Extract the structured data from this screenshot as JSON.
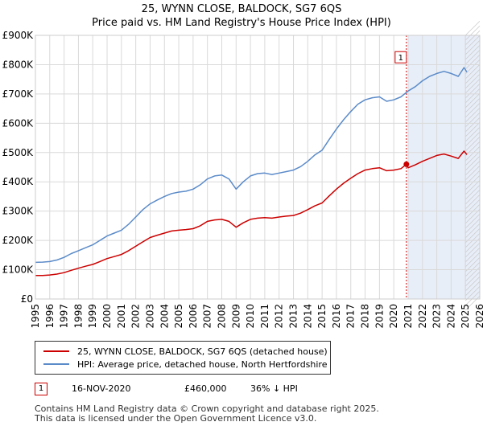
{
  "header": {
    "title": "25, WYNN CLOSE, BALDOCK, SG7 6QS",
    "subtitle": "Price paid vs. HM Land Registry's House Price Index (HPI)"
  },
  "chart_data": {
    "type": "line",
    "title": "25, WYNN CLOSE, BALDOCK, SG7 6QS",
    "subtitle": "Price paid vs. HM Land Registry's House Price Index (HPI)",
    "xlabel": "",
    "ylabel": "",
    "xlim": [
      1995,
      2026
    ],
    "ylim": [
      0,
      900000
    ],
    "x_ticks": [
      1995,
      1996,
      1997,
      1998,
      1999,
      2000,
      2001,
      2002,
      2003,
      2004,
      2005,
      2006,
      2007,
      2008,
      2009,
      2010,
      2011,
      2012,
      2013,
      2014,
      2015,
      2016,
      2017,
      2018,
      2019,
      2020,
      2021,
      2022,
      2023,
      2024,
      2025,
      2026
    ],
    "y_ticks": [
      {
        "value": 0,
        "label": "£0"
      },
      {
        "value": 100000,
        "label": "£100K"
      },
      {
        "value": 200000,
        "label": "£200K"
      },
      {
        "value": 300000,
        "label": "£300K"
      },
      {
        "value": 400000,
        "label": "£400K"
      },
      {
        "value": 500000,
        "label": "£500K"
      },
      {
        "value": 600000,
        "label": "£600K"
      },
      {
        "value": 700000,
        "label": "£700K"
      },
      {
        "value": 800000,
        "label": "£800K"
      },
      {
        "value": 900000,
        "label": "£900K"
      }
    ],
    "grid": true,
    "series": [
      {
        "name": "25, WYNN CLOSE, BALDOCK, SG7 6QS (detached house)",
        "color": "#cc0000",
        "x": [
          1995.0,
          1995.5,
          1996.0,
          1996.5,
          1997.0,
          1997.5,
          1998.0,
          1998.5,
          1999.0,
          1999.5,
          2000.0,
          2000.5,
          2001.0,
          2001.5,
          2002.0,
          2002.5,
          2003.0,
          2003.5,
          2004.0,
          2004.5,
          2005.0,
          2005.5,
          2006.0,
          2006.5,
          2007.0,
          2007.5,
          2008.0,
          2008.5,
          2009.0,
          2009.5,
          2010.0,
          2010.5,
          2011.0,
          2011.5,
          2012.0,
          2012.5,
          2013.0,
          2013.5,
          2014.0,
          2014.5,
          2015.0,
          2015.5,
          2016.0,
          2016.5,
          2017.0,
          2017.5,
          2018.0,
          2018.5,
          2019.0,
          2019.5,
          2020.0,
          2020.5,
          2020.88,
          2021.0,
          2021.5,
          2022.0,
          2022.5,
          2023.0,
          2023.5,
          2024.0,
          2024.5,
          2024.9,
          2025.1
        ],
        "values": [
          80000,
          80000,
          82000,
          85000,
          90000,
          98000,
          105000,
          112000,
          118000,
          128000,
          138000,
          145000,
          152000,
          165000,
          180000,
          195000,
          210000,
          218000,
          225000,
          232000,
          235000,
          237000,
          240000,
          250000,
          265000,
          270000,
          272000,
          265000,
          245000,
          260000,
          272000,
          276000,
          278000,
          276000,
          280000,
          283000,
          285000,
          293000,
          305000,
          318000,
          328000,
          352000,
          375000,
          395000,
          412000,
          428000,
          440000,
          445000,
          448000,
          438000,
          440000,
          445000,
          460000,
          448000,
          458000,
          470000,
          480000,
          490000,
          495000,
          488000,
          480000,
          505000,
          493000
        ]
      },
      {
        "name": "HPI: Average price, detached house, North Hertfordshire",
        "color": "#5b8bc9",
        "x": [
          1995.0,
          1995.5,
          1996.0,
          1996.5,
          1997.0,
          1997.5,
          1998.0,
          1998.5,
          1999.0,
          1999.5,
          2000.0,
          2000.5,
          2001.0,
          2001.5,
          2002.0,
          2002.5,
          2003.0,
          2003.5,
          2004.0,
          2004.5,
          2005.0,
          2005.5,
          2006.0,
          2006.5,
          2007.0,
          2007.5,
          2008.0,
          2008.5,
          2009.0,
          2009.5,
          2010.0,
          2010.5,
          2011.0,
          2011.5,
          2012.0,
          2012.5,
          2013.0,
          2013.5,
          2014.0,
          2014.5,
          2015.0,
          2015.5,
          2016.0,
          2016.5,
          2017.0,
          2017.5,
          2018.0,
          2018.5,
          2019.0,
          2019.5,
          2020.0,
          2020.5,
          2021.0,
          2021.5,
          2022.0,
          2022.5,
          2023.0,
          2023.5,
          2024.0,
          2024.5,
          2024.9,
          2025.1
        ],
        "values": [
          125000,
          126000,
          128000,
          133000,
          142000,
          155000,
          165000,
          175000,
          185000,
          200000,
          215000,
          225000,
          235000,
          255000,
          280000,
          305000,
          325000,
          338000,
          350000,
          360000,
          365000,
          368000,
          375000,
          390000,
          410000,
          420000,
          423000,
          410000,
          375000,
          400000,
          420000,
          428000,
          430000,
          425000,
          430000,
          435000,
          440000,
          452000,
          470000,
          492000,
          508000,
          545000,
          580000,
          612000,
          640000,
          665000,
          680000,
          687000,
          690000,
          675000,
          680000,
          690000,
          710000,
          725000,
          745000,
          760000,
          770000,
          777000,
          770000,
          760000,
          790000,
          775000
        ]
      }
    ],
    "sales": [
      {
        "label": "1",
        "x": 2020.88,
        "value": 460000
      }
    ],
    "shaded_region": {
      "from": 2021.0,
      "to": 2026.0
    }
  },
  "legend": {
    "items": [
      {
        "label": "25, WYNN CLOSE, BALDOCK, SG7 6QS (detached house)",
        "color": "#cc0000"
      },
      {
        "label": "HPI: Average price, detached house, North Hertfordshire",
        "color": "#5b8bc9"
      }
    ]
  },
  "sale": {
    "marker": "1",
    "date": "16-NOV-2020",
    "price": "£460,000",
    "hpi_diff": "36% ↓ HPI"
  },
  "footer": {
    "line1": "Contains HM Land Registry data © Crown copyright and database right 2025.",
    "line2": "This data is licensed under the Open Government Licence v3.0."
  }
}
